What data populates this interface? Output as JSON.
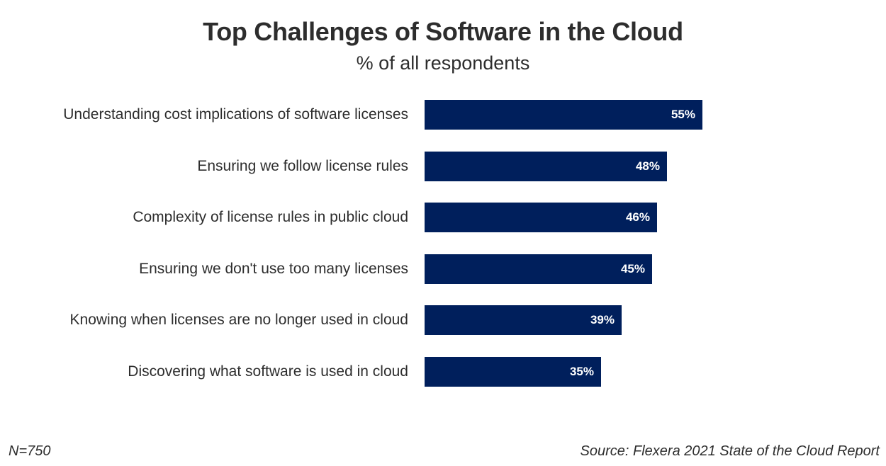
{
  "chart_data": {
    "type": "bar",
    "orientation": "horizontal",
    "title": "Top Challenges of Software in the Cloud",
    "subtitle": "% of all respondents",
    "categories": [
      "Understanding cost implications of software licenses",
      "Ensuring we follow license rules",
      "Complexity of license rules in public cloud",
      "Ensuring we don't use too many licenses",
      "Knowing when licenses are no longer used in cloud",
      "Discovering what software is used in cloud"
    ],
    "values": [
      55,
      48,
      46,
      45,
      39,
      35
    ],
    "value_labels": [
      "55%",
      "48%",
      "46%",
      "45%",
      "39%",
      "35%"
    ],
    "xlim": [
      0,
      55
    ],
    "grid": false,
    "bar_color": "#001f5c"
  },
  "footer": {
    "sample": "N=750",
    "source": "Source: Flexera 2021 State of the Cloud Report"
  }
}
